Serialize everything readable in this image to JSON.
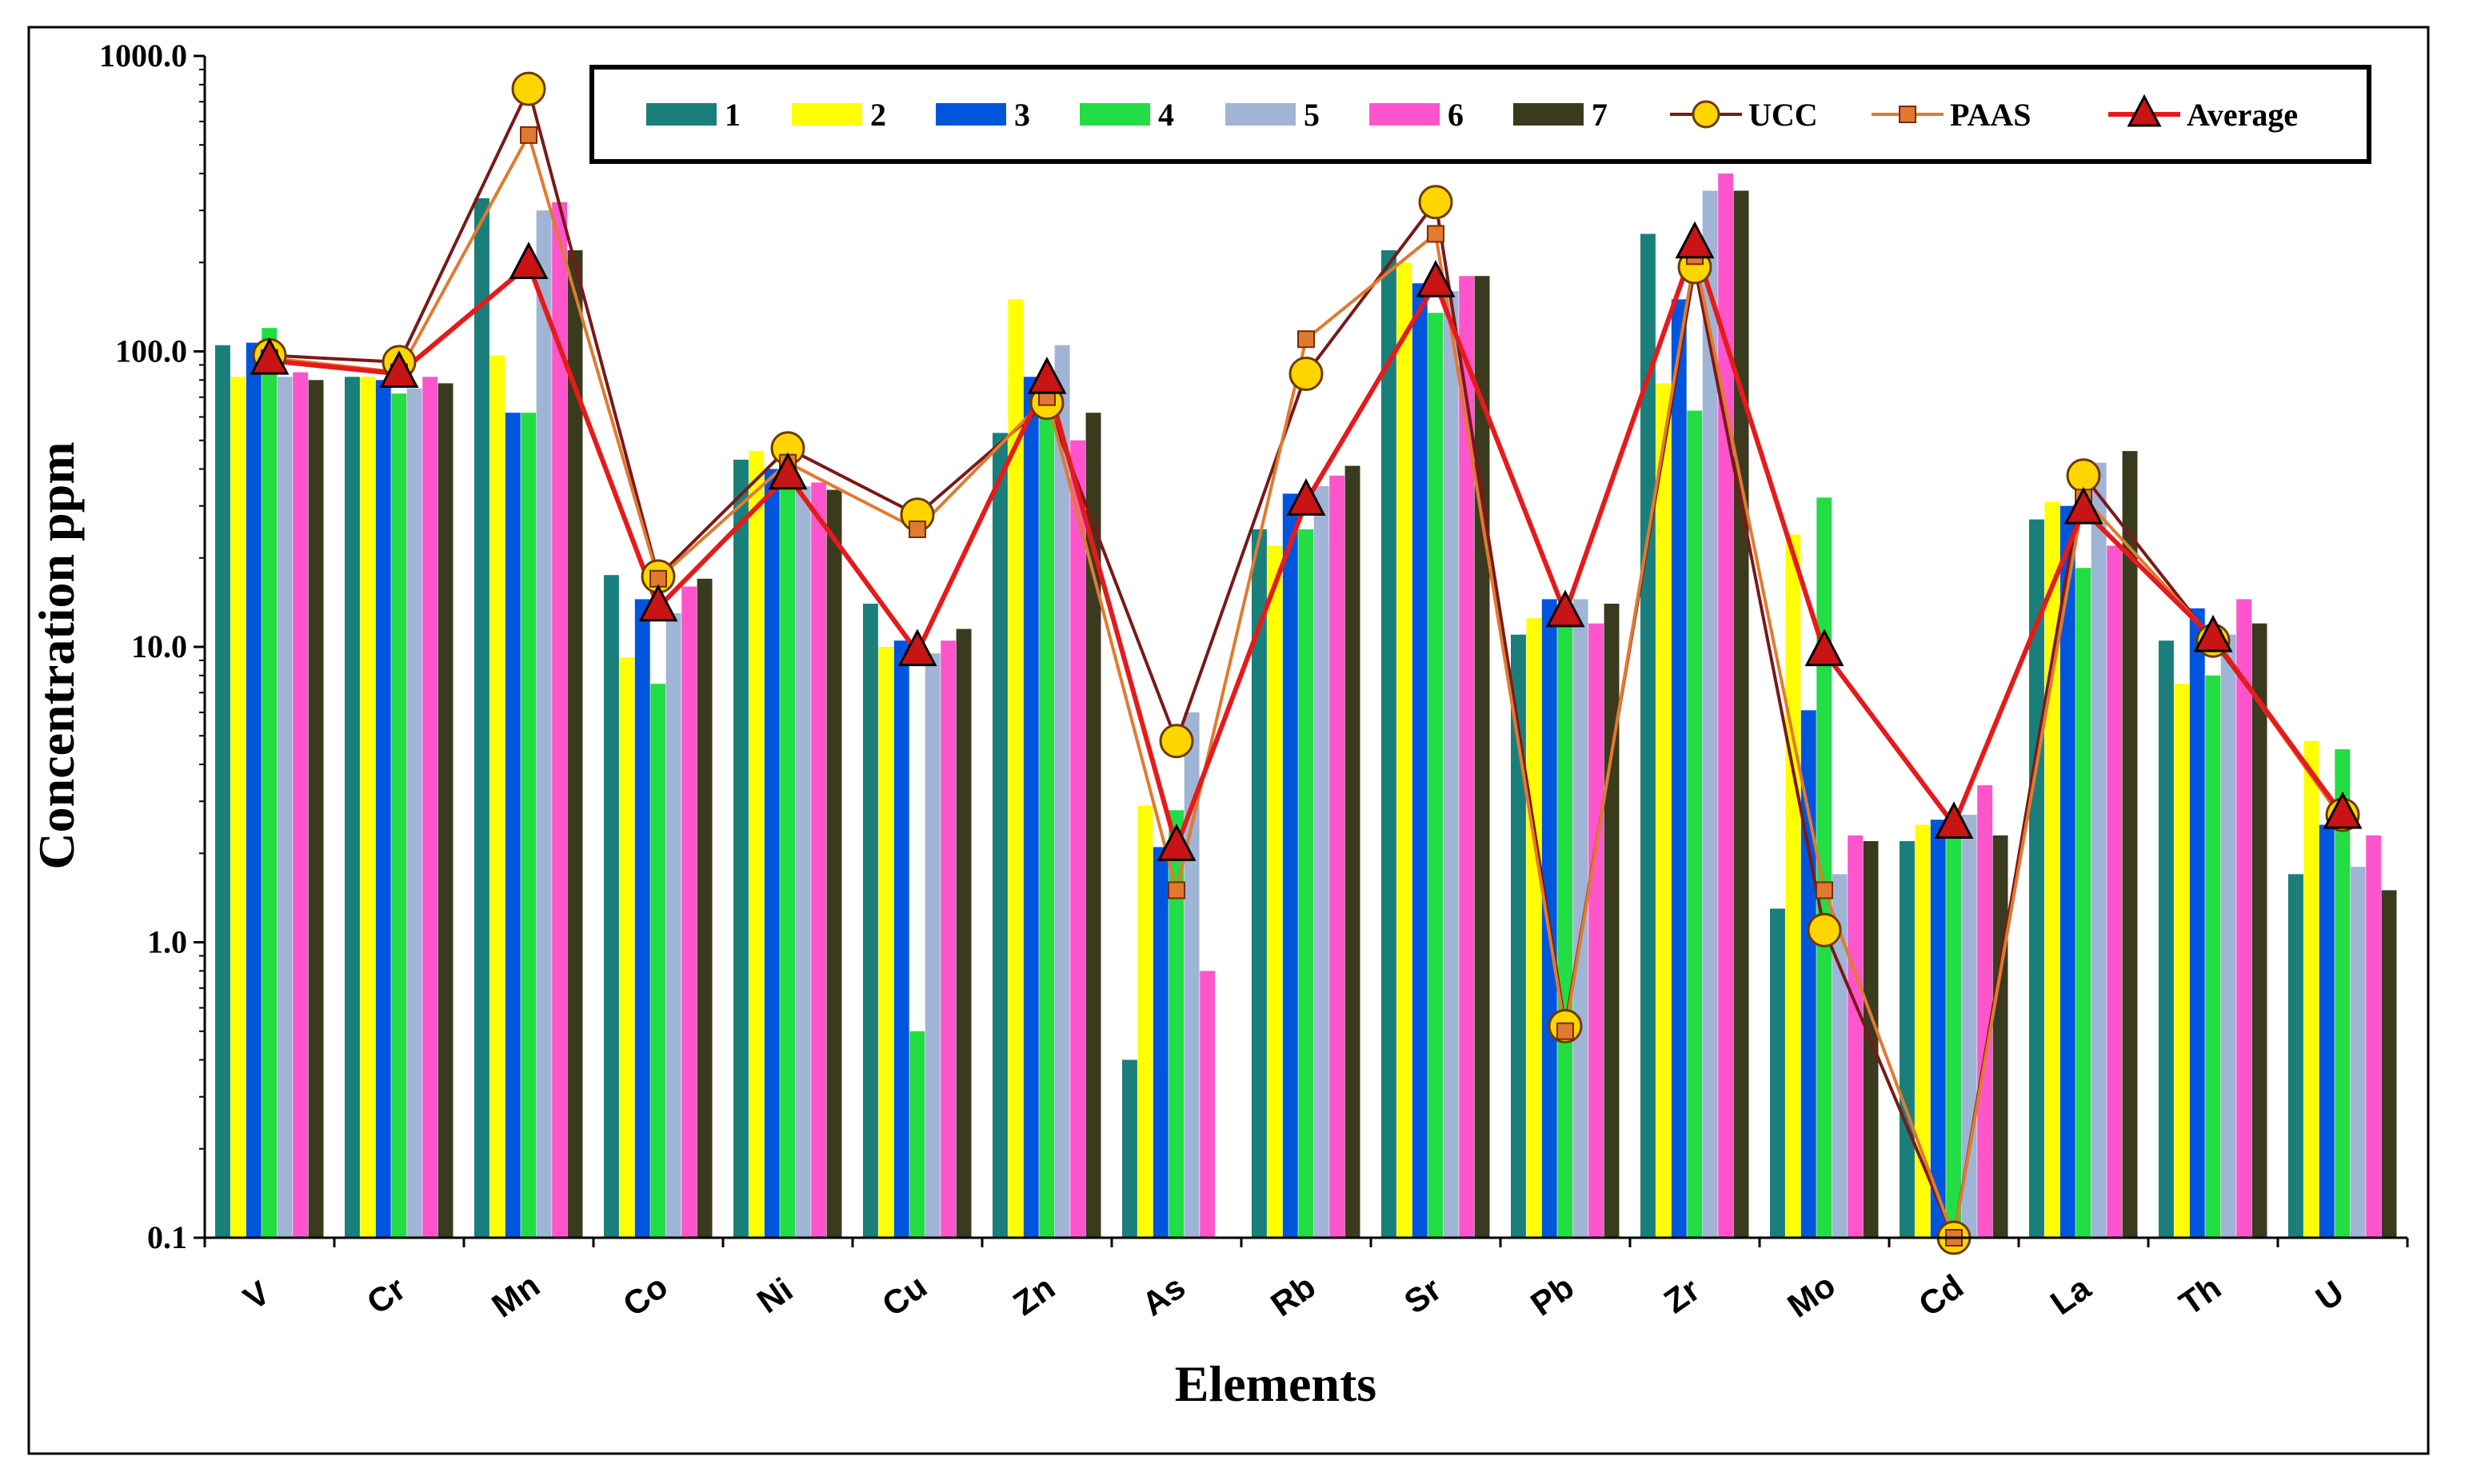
{
  "chart_data": {
    "type": "bar",
    "yscale": "log",
    "ylim": [
      0.1,
      1000
    ],
    "yticks": [
      "0.1",
      "1.0",
      "10.0",
      "100.0",
      "1000.0"
    ],
    "xlabel": "Elements",
    "ylabel": "Concentration ppm",
    "legend_position": "top",
    "categories": [
      "V",
      "Cr",
      "Mn",
      "Co",
      "Ni",
      "Cu",
      "Zn",
      "As",
      "Rb",
      "Sr",
      "Pb",
      "Zr",
      "Mo",
      "Cd",
      "La",
      "Th",
      "U"
    ],
    "bar_series": [
      {
        "name": "1",
        "color": "#1a7f7a",
        "values": [
          105,
          82,
          330,
          17.5,
          43,
          14,
          53,
          0.4,
          25,
          220,
          11,
          250,
          1.3,
          2.2,
          27,
          10.5,
          1.7
        ]
      },
      {
        "name": "2",
        "color": "#ffff00",
        "values": [
          82,
          82,
          97,
          9.2,
          46,
          10,
          150,
          2.9,
          22,
          200,
          12.5,
          78,
          24,
          2.5,
          31,
          7.5,
          4.8
        ]
      },
      {
        "name": "3",
        "color": "#0055dd",
        "values": [
          107,
          80,
          62,
          14.5,
          40,
          10.5,
          82,
          2.1,
          33,
          170,
          14.5,
          150,
          6.1,
          2.6,
          30,
          13.5,
          2.5
        ]
      },
      {
        "name": "4",
        "color": "#22dd44",
        "values": [
          120,
          72,
          62,
          7.5,
          36,
          0.5,
          80,
          2.8,
          25,
          135,
          13,
          63,
          32,
          2.5,
          18.5,
          8,
          4.5
        ]
      },
      {
        "name": "5",
        "color": "#a0b4d6",
        "values": [
          82,
          75,
          300,
          13,
          35,
          9.5,
          105,
          6,
          35,
          160,
          14.5,
          350,
          1.7,
          2.7,
          42,
          11,
          1.8
        ]
      },
      {
        "name": "6",
        "color": "#ff55cc",
        "values": [
          85,
          82,
          320,
          16,
          36,
          10.5,
          50,
          0.8,
          38,
          180,
          12,
          400,
          2.3,
          3.4,
          22,
          14.5,
          2.3
        ]
      },
      {
        "name": "7",
        "color": "#3a3a1e",
        "values": [
          80,
          78,
          220,
          17,
          34,
          11.5,
          62,
          0.1,
          41,
          180,
          14,
          350,
          2.2,
          2.3,
          46,
          12,
          1.5
        ]
      }
    ],
    "line_series": [
      {
        "name": "UCC",
        "color": "#7a1818",
        "marker": "circle",
        "marker_color": "#ffd500",
        "values": [
          97,
          92,
          774,
          17.3,
          47,
          28,
          67,
          4.8,
          84,
          320,
          0.52,
          193,
          1.1,
          0.09,
          38,
          10.5,
          2.7
        ]
      },
      {
        "name": "PAAS",
        "color": "#e07a30",
        "marker": "square",
        "marker_color": "#e07a30",
        "values": [
          95,
          85,
          540,
          17,
          42,
          25,
          70,
          1.5,
          110,
          250,
          0.5,
          210,
          1.5,
          0.09,
          32,
          10.7,
          2.6
        ]
      },
      {
        "name": "Average",
        "color": "#e61a1a",
        "marker": "triangle",
        "marker_color": "#c81414",
        "values": [
          93,
          84,
          196,
          13.6,
          38,
          9.6,
          80,
          2.1,
          31,
          170,
          13,
          230,
          9.6,
          2.5,
          29,
          10.7,
          2.7
        ]
      }
    ]
  }
}
